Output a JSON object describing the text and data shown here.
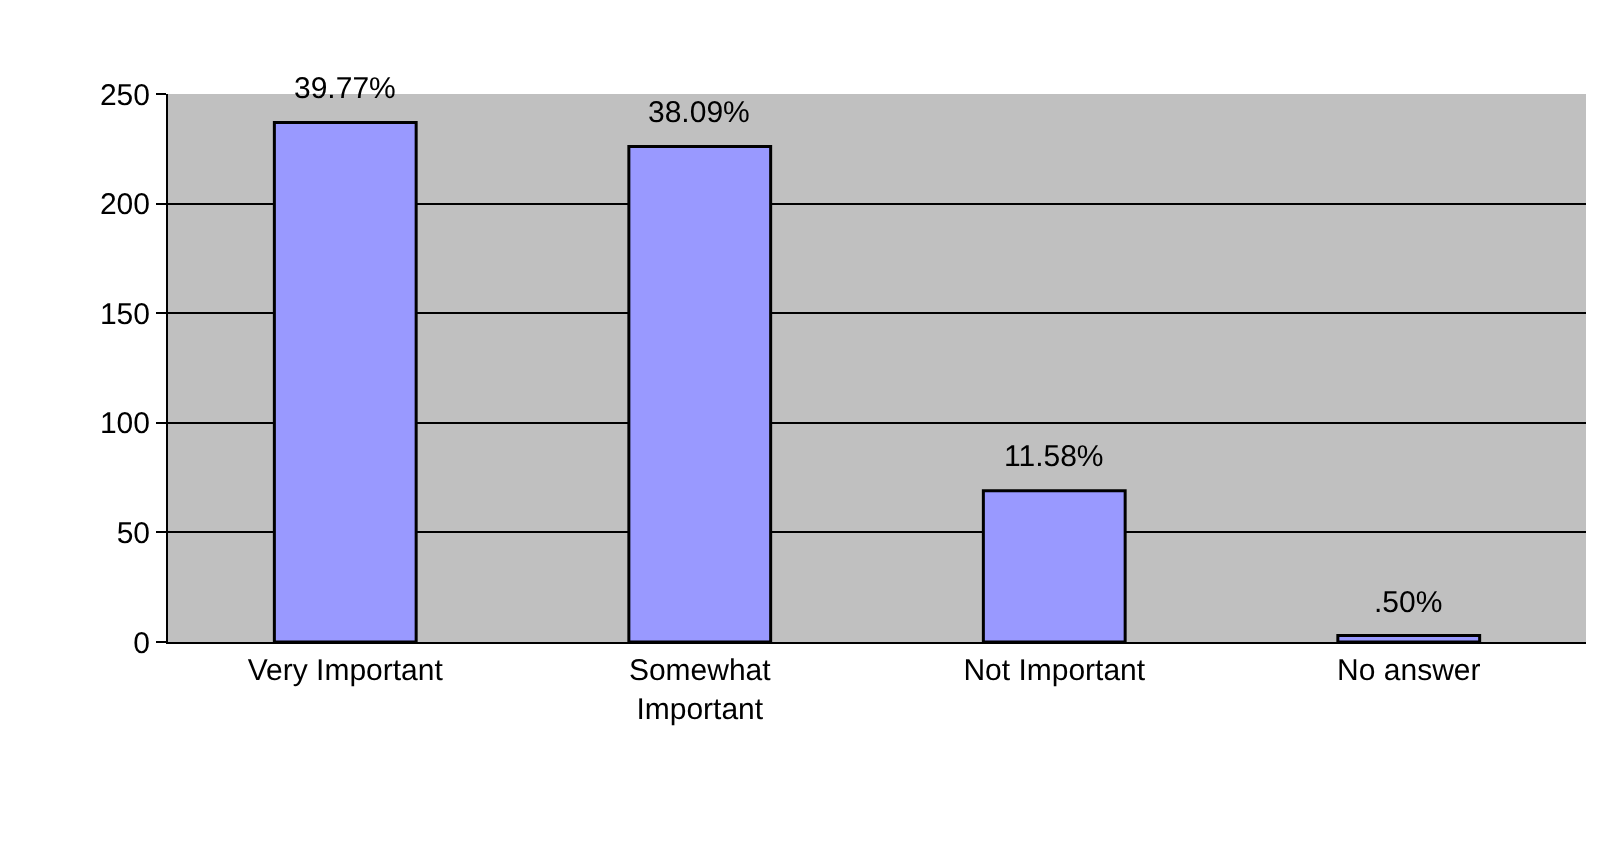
{
  "chart_data": {
    "type": "bar",
    "categories": [
      "Very Important",
      "Somewhat Important",
      "Not Important",
      "No answer"
    ],
    "values": [
      237,
      226,
      69,
      3
    ],
    "annotations": [
      {
        "text": "39.77%",
        "x": "Very Important",
        "y": 237
      },
      {
        "text": "38.09%",
        "x": "Somewhat Important",
        "y": 226
      },
      {
        "text": "11.58%",
        "x": "Not Important",
        "y": 69
      },
      {
        "text": ".50%",
        "x": "No answer",
        "y": 3
      }
    ],
    "color": "#9999ff",
    "ylim": [
      0,
      250
    ],
    "yticks": [
      0,
      50,
      100,
      150,
      200,
      250
    ],
    "grid": "y",
    "legend": false
  }
}
